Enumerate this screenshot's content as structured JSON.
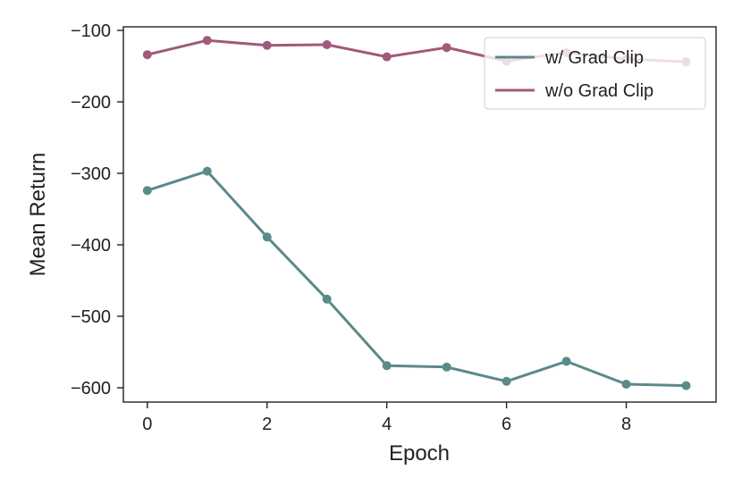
{
  "chart_data": {
    "type": "line",
    "title": "",
    "xlabel": "Epoch",
    "ylabel": "Mean Return",
    "x": [
      0,
      1,
      2,
      3,
      4,
      5,
      6,
      7,
      8,
      9
    ],
    "xlim": [
      -0.4,
      9.5
    ],
    "ylim": [
      -620,
      -95
    ],
    "xticks": [
      0,
      2,
      4,
      6,
      8
    ],
    "xtick_labels": [
      "0",
      "2",
      "4",
      "6",
      "8"
    ],
    "yticks": [
      -100,
      -200,
      -300,
      -400,
      -500,
      -600
    ],
    "ytick_labels": [
      "−100",
      "−200",
      "−300",
      "−400",
      "−500",
      "−600"
    ],
    "grid": false,
    "legend_position": "top-right",
    "series": [
      {
        "name": "w/ Grad Clip",
        "color": "#5b8a8a",
        "values": [
          -324,
          -297,
          -389,
          -476,
          -569,
          -571,
          -591,
          -563,
          -595,
          -597
        ]
      },
      {
        "name": "w/o Grad Clip",
        "color": "#a05a7a",
        "values": [
          -134,
          -114,
          -121,
          -120,
          -137,
          -124,
          -143,
          -131,
          -140,
          -144
        ]
      }
    ]
  }
}
